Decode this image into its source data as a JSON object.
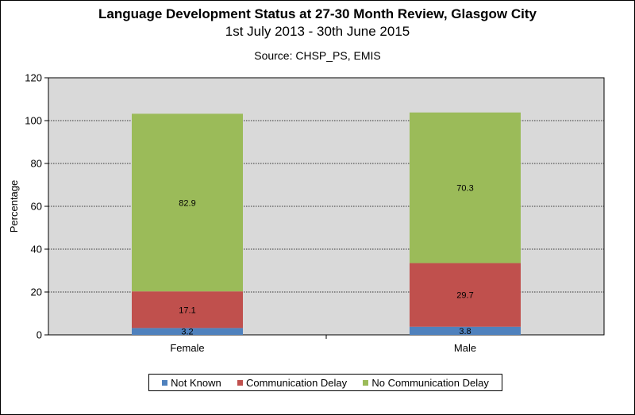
{
  "chart_data": {
    "type": "bar",
    "stacked": true,
    "title": "Language Development Status at 27-30 Month Review, Glasgow City",
    "subtitle": "1st July 2013 - 30th June 2015",
    "source": "Source: CHSP_PS, EMIS",
    "ylabel": "Percentage",
    "xlabel": "",
    "ylim": [
      0,
      120
    ],
    "yticks": [
      0,
      20,
      40,
      60,
      80,
      100,
      120
    ],
    "grid": true,
    "legend_position": "bottom",
    "categories": [
      "Female",
      "Male"
    ],
    "series": [
      {
        "name": "Not Known",
        "color": "#4f81bd",
        "values": [
          3.2,
          3.8
        ]
      },
      {
        "name": "Communication Delay",
        "color": "#c0504d",
        "values": [
          17.1,
          29.7
        ]
      },
      {
        "name": "No Communication Delay",
        "color": "#9bbb59",
        "values": [
          82.9,
          70.3
        ]
      }
    ]
  }
}
